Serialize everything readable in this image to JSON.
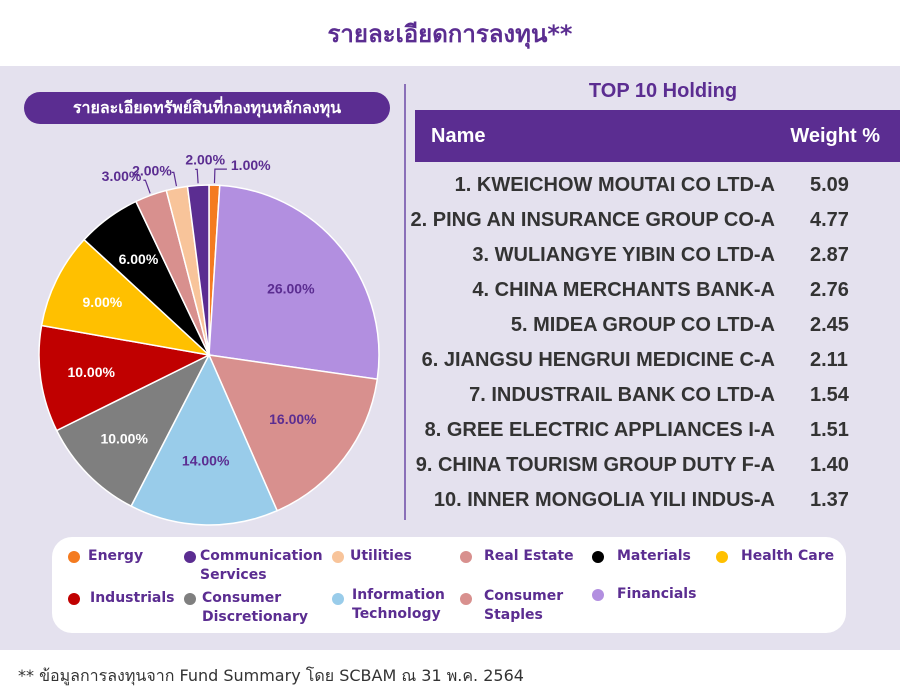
{
  "page_title": "รายละเอียดการลงทุน**",
  "pie_section_title": "รายละเอียดทรัพย์สินที่กองทุนหลักลงทุน",
  "top10": {
    "title": "TOP 10 Holding",
    "col_name": "Name",
    "col_weight": "Weight %",
    "rows": [
      {
        "name": "1. KWEICHOW MOUTAI CO LTD-A",
        "weight": "5.09"
      },
      {
        "name": "2. PING AN INSURANCE GROUP CO-A",
        "weight": "4.77"
      },
      {
        "name": "3. WULIANGYE YIBIN CO LTD-A",
        "weight": "2.87"
      },
      {
        "name": "4. CHINA MERCHANTS BANK-A",
        "weight": "2.76"
      },
      {
        "name": "5. MIDEA GROUP CO LTD-A",
        "weight": "2.45"
      },
      {
        "name": "6. JIANGSU HENGRUI MEDICINE C-A",
        "weight": "2.11"
      },
      {
        "name": "7. INDUSTRAIL BANK CO LTD-A",
        "weight": "1.54"
      },
      {
        "name": "8. GREE ELECTRIC APPLIANCES I-A",
        "weight": "1.51"
      },
      {
        "name": "9. CHINA TOURISM GROUP DUTY F-A",
        "weight": "1.40"
      },
      {
        "name": "10. INNER MONGOLIA YILI INDUS-A",
        "weight": "1.37"
      }
    ]
  },
  "legend": [
    {
      "label": "Energy",
      "color": "#f47b20"
    },
    {
      "label": "Communication Services",
      "color": "#5b2d91"
    },
    {
      "label": "Utilities",
      "color": "#f8c49a"
    },
    {
      "label": "Real Estate",
      "color": "#d8908e"
    },
    {
      "label": "Materials",
      "color": "#000000"
    },
    {
      "label": "Health Care",
      "color": "#ffc000"
    },
    {
      "label": "Industrials",
      "color": "#c00000"
    },
    {
      "label": "Consumer Discretionary",
      "color": "#7f7f7f"
    },
    {
      "label": "Information Technology",
      "color": "#99ccea"
    },
    {
      "label": "Consumer Staples",
      "color": "#d8908e"
    },
    {
      "label": "Financials",
      "color": "#b28fe0"
    }
  ],
  "chart_data": {
    "type": "pie",
    "slices": [
      {
        "category": "Energy",
        "value": 1.0,
        "label": "1.00%",
        "color": "#f47b20"
      },
      {
        "category": "Financials",
        "value": 26.0,
        "label": "26.00%",
        "color": "#b28fe0"
      },
      {
        "category": "Consumer Staples",
        "value": 16.0,
        "label": "16.00%",
        "color": "#d8908e"
      },
      {
        "category": "Information Technology",
        "value": 14.0,
        "label": "14.00%",
        "color": "#99ccea"
      },
      {
        "category": "Consumer Discretionary",
        "value": 10.0,
        "label": "10.00%",
        "color": "#7f7f7f"
      },
      {
        "category": "Industrials",
        "value": 10.0,
        "label": "10.00%",
        "color": "#c00000"
      },
      {
        "category": "Health Care",
        "value": 9.0,
        "label": "9.00%",
        "color": "#ffc000"
      },
      {
        "category": "Materials",
        "value": 6.0,
        "label": "6.00%",
        "color": "#000000"
      },
      {
        "category": "Real Estate",
        "value": 3.0,
        "label": "3.00%",
        "color": "#d8908e"
      },
      {
        "category": "Utilities",
        "value": 2.0,
        "label": "2.00%",
        "color": "#f8c49a"
      },
      {
        "category": "Communication Services",
        "value": 2.0,
        "label": "2.00%",
        "color": "#5b2d91"
      }
    ]
  },
  "footnote": "** ข้อมูลการลงทุนจาก Fund Summary โดย SCBAM ณ 31 พ.ค. 2564"
}
